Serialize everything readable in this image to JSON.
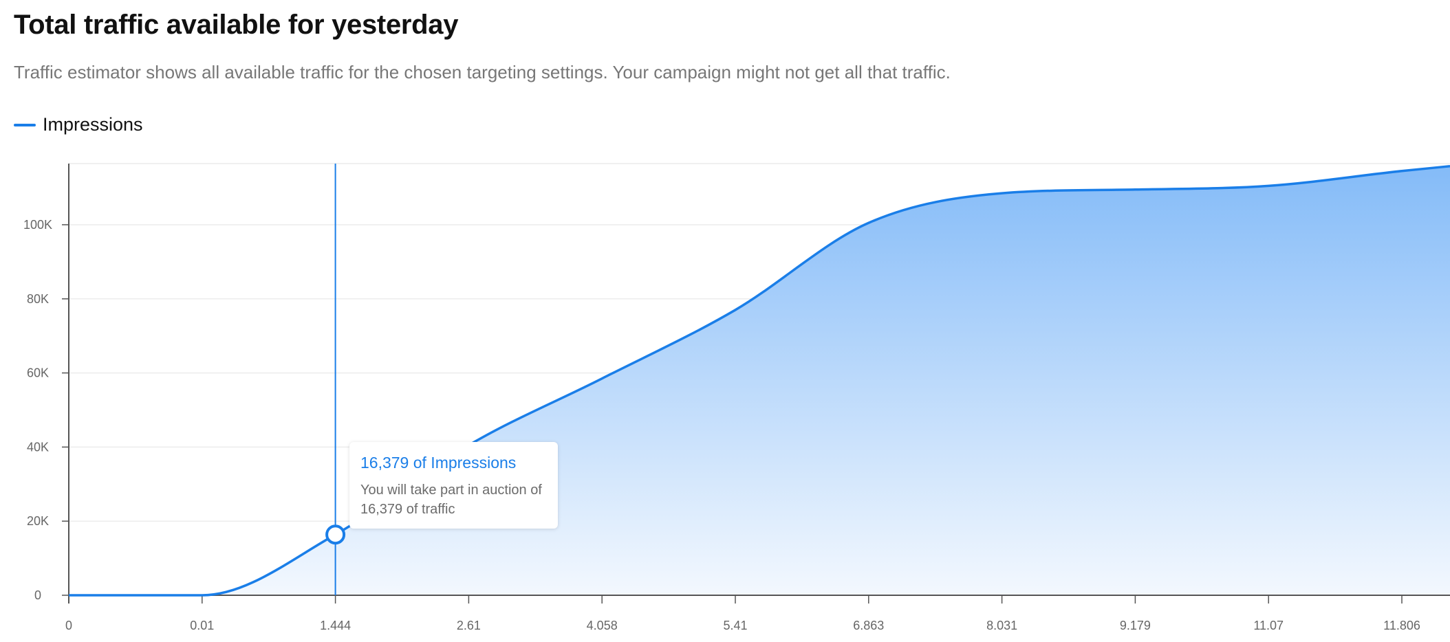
{
  "header": {
    "title": "Total traffic available for yesterday",
    "subtitle": "Traffic estimator shows all available traffic for the chosen targeting settings. Your campaign might not get all that traffic."
  },
  "colors": {
    "accent": "#1a7ee8",
    "fill_top": "#84bbf8",
    "fill_bottom": "#f3f8fe",
    "axis": "#555555",
    "grid": "#ececec"
  },
  "chart_data": {
    "type": "area",
    "legend": [
      {
        "name": "Impressions",
        "color": "#1a7ee8"
      }
    ],
    "legend_position": "top-left",
    "grid": true,
    "x_ticks": [
      "0",
      "0.01",
      "1.444",
      "2.61",
      "4.058",
      "5.41",
      "6.863",
      "8.031",
      "9.179",
      "11.07",
      "11.806"
    ],
    "y_ticks": [
      {
        "value": 0,
        "label": "0"
      },
      {
        "value": 20000,
        "label": "20K"
      },
      {
        "value": 40000,
        "label": "40K"
      },
      {
        "value": 60000,
        "label": "60K"
      },
      {
        "value": 80000,
        "label": "80K"
      },
      {
        "value": 100000,
        "label": "100K"
      }
    ],
    "ylim": [
      0,
      116500
    ],
    "series": [
      {
        "name": "Impressions",
        "points": [
          {
            "x": "0",
            "y": 0
          },
          {
            "x": "0.01",
            "y": 0
          },
          {
            "x": "1.444",
            "y": 16379
          },
          {
            "x": "2.61",
            "y": 40500
          },
          {
            "x": "4.058",
            "y": 58500
          },
          {
            "x": "5.41",
            "y": 77000
          },
          {
            "x": "6.863",
            "y": 100500
          },
          {
            "x": "8.031",
            "y": 108500
          },
          {
            "x": "9.179",
            "y": 109500
          },
          {
            "x": "11.07",
            "y": 110500
          },
          {
            "x": "11.806",
            "y": 114500
          }
        ],
        "end_value": 115800
      }
    ],
    "highlight": {
      "x": "1.444",
      "y": 16379
    }
  },
  "tooltip": {
    "title": "16,379 of Impressions",
    "body": "You will take part in auction of 16,379 of traffic"
  }
}
